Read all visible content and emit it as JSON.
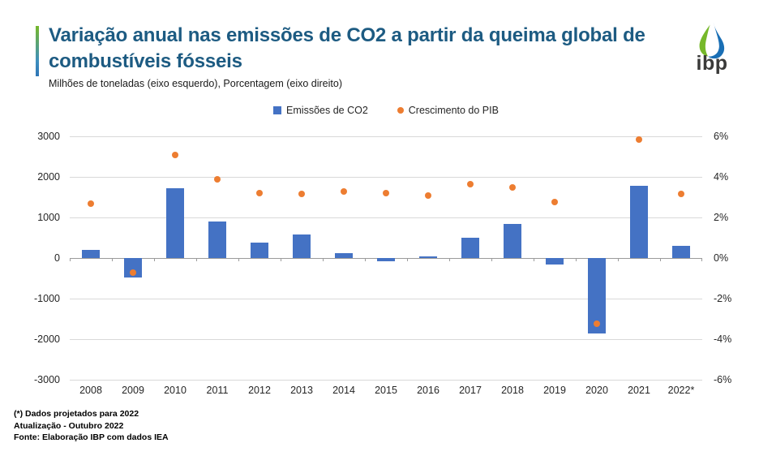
{
  "header": {
    "title": "Variação anual nas emissões de CO2 a partir da queima global de combustíveis fósseis",
    "subtitle": "Milhões de toneladas (eixo esquerdo), Porcentagem (eixo direito)",
    "logo_text": "ibp"
  },
  "legend": [
    {
      "label": "Emissões de CO2",
      "marker": "square",
      "color": "#4472C4"
    },
    {
      "label": "Crescimento do PIB",
      "marker": "circle",
      "color": "#ED7D31"
    }
  ],
  "chart_data": {
    "type": "bar",
    "subtype": "bar+scatter dual-axis",
    "title": "Variação anual nas emissões de CO2 a partir da queima global de combustíveis fósseis",
    "categories": [
      "2008",
      "2009",
      "2010",
      "2011",
      "2012",
      "2013",
      "2014",
      "2015",
      "2016",
      "2017",
      "2018",
      "2019",
      "2020",
      "2021",
      "2022*"
    ],
    "series": [
      {
        "name": "Emissões de CO2",
        "type": "bar",
        "axis": "left",
        "color": "#4472C4",
        "unit": "Milhões de toneladas",
        "values": [
          200,
          -480,
          1720,
          900,
          380,
          580,
          120,
          -80,
          40,
          500,
          840,
          -160,
          -1850,
          1780,
          310
        ]
      },
      {
        "name": "Crescimento do PIB",
        "type": "scatter",
        "axis": "right",
        "color": "#ED7D31",
        "unit": "%",
        "values": [
          2.7,
          -0.7,
          5.1,
          3.9,
          3.2,
          3.15,
          3.3,
          3.2,
          3.1,
          3.65,
          3.5,
          2.75,
          -3.25,
          5.85,
          3.15
        ]
      }
    ],
    "left_axis": {
      "min": -3000,
      "max": 3000,
      "ticks": [
        {
          "value": 3000,
          "label": "3000"
        },
        {
          "value": 2000,
          "label": "2000"
        },
        {
          "value": 1000,
          "label": "1000"
        },
        {
          "value": 0,
          "label": "0"
        },
        {
          "value": -1000,
          "label": "-1000"
        },
        {
          "value": -2000,
          "label": "-2000"
        },
        {
          "value": -3000,
          "label": "-3000"
        }
      ]
    },
    "right_axis": {
      "min": -6,
      "max": 6,
      "ticks": [
        {
          "value": 6,
          "label": "6%"
        },
        {
          "value": 4,
          "label": "4%"
        },
        {
          "value": 2,
          "label": "2%"
        },
        {
          "value": 0,
          "label": "0%"
        },
        {
          "value": -2,
          "label": "-2%"
        },
        {
          "value": -4,
          "label": "-4%"
        },
        {
          "value": -6,
          "label": "-6%"
        }
      ]
    },
    "grid": true,
    "legend_position": "top-center"
  },
  "footer": {
    "lines": [
      "(*) Dados projetados para 2022",
      "Atualização - Outubro 2022",
      "Fonte: Elaboração IBP com dados IEA"
    ]
  }
}
